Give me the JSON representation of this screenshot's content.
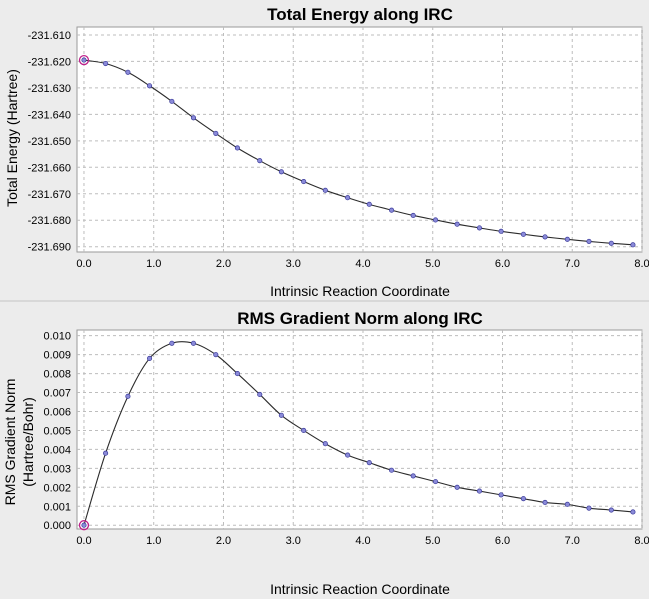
{
  "chart_data": [
    {
      "type": "line",
      "title": "Total Energy along IRC",
      "xlabel": "Intrinsic Reaction Coordinate",
      "ylabel": "Total Energy (Hartree)",
      "xlim": [
        -0.1,
        8.0
      ],
      "ylim": [
        -231.692,
        -231.607
      ],
      "xticks": [
        0.0,
        1.0,
        2.0,
        3.0,
        4.0,
        5.0,
        6.0,
        7.0,
        8.0
      ],
      "yticks": [
        -231.61,
        -231.62,
        -231.63,
        -231.64,
        -231.65,
        -231.66,
        -231.67,
        -231.68,
        -231.69
      ],
      "tick_decimals_x": 1,
      "tick_decimals_y": 3,
      "grid": true,
      "series": [
        {
          "x": [
            0.0,
            0.31,
            0.63,
            0.94,
            1.26,
            1.57,
            1.89,
            2.2,
            2.52,
            2.83,
            3.15,
            3.46,
            3.78,
            4.09,
            4.41,
            4.72,
            5.04,
            5.35,
            5.67,
            5.98,
            6.3,
            6.61,
            6.93,
            7.24,
            7.56,
            7.87
          ],
          "y": [
            -231.6195,
            -231.6208,
            -231.6241,
            -231.6292,
            -231.6351,
            -231.6413,
            -231.6472,
            -231.6527,
            -231.6575,
            -231.6617,
            -231.6654,
            -231.6687,
            -231.6715,
            -231.674,
            -231.6762,
            -231.6782,
            -231.6799,
            -231.6815,
            -231.6829,
            -231.6842,
            -231.6853,
            -231.6863,
            -231.6872,
            -231.688,
            -231.6887,
            -231.6893
          ]
        }
      ],
      "marked_point": {
        "x": 0.0,
        "y": -231.6195
      }
    },
    {
      "type": "line",
      "title": "RMS Gradient Norm along IRC",
      "xlabel": "Intrinsic Reaction Coordinate",
      "ylabel": "RMS Gradient Norm",
      "ylabel_unit": "(Hartree/Bohr)",
      "xlim": [
        -0.1,
        8.0
      ],
      "ylim": [
        -0.0002,
        0.0103
      ],
      "xticks": [
        0.0,
        1.0,
        2.0,
        3.0,
        4.0,
        5.0,
        6.0,
        7.0,
        8.0
      ],
      "yticks": [
        0.0,
        0.001,
        0.002,
        0.003,
        0.004,
        0.005,
        0.006,
        0.007,
        0.008,
        0.009,
        0.01
      ],
      "tick_decimals_x": 1,
      "tick_decimals_y": 3,
      "grid": true,
      "series": [
        {
          "x": [
            0.0,
            0.31,
            0.63,
            0.94,
            1.26,
            1.57,
            1.89,
            2.2,
            2.52,
            2.83,
            3.15,
            3.46,
            3.78,
            4.09,
            4.41,
            4.72,
            5.04,
            5.35,
            5.67,
            5.98,
            6.3,
            6.61,
            6.93,
            7.24,
            7.56,
            7.87
          ],
          "y": [
            0.0,
            0.0038,
            0.0068,
            0.0088,
            0.0096,
            0.0096,
            0.009,
            0.008,
            0.0069,
            0.0058,
            0.005,
            0.0043,
            0.0037,
            0.0033,
            0.0029,
            0.0026,
            0.0023,
            0.002,
            0.0018,
            0.0016,
            0.0014,
            0.0012,
            0.0011,
            0.0009,
            0.0008,
            0.0007
          ]
        }
      ],
      "marked_point": {
        "x": 0.0,
        "y": 0.0
      }
    }
  ]
}
